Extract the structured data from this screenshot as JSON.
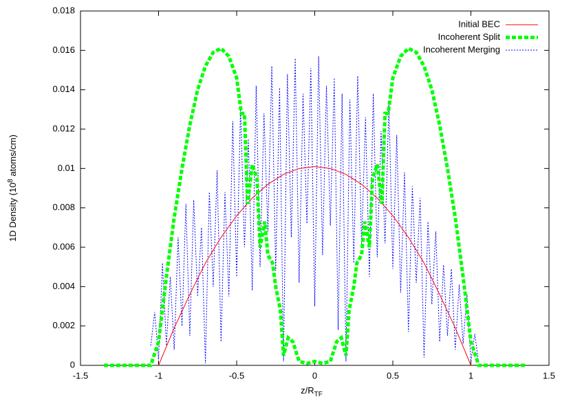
{
  "chart_data": {
    "type": "line",
    "xlabel": [
      "z/R",
      "TF"
    ],
    "ylabel": [
      "1D Density (10",
      "8",
      " atoms/cm)"
    ],
    "xlim": [
      -1.5,
      1.5
    ],
    "xticks": [
      -1.5,
      -1,
      -0.5,
      0,
      0.5,
      1,
      1.5
    ],
    "ylim": [
      0,
      0.018
    ],
    "yticks": [
      0,
      0.002,
      0.004,
      0.006,
      0.008,
      0.01,
      0.012,
      0.014,
      0.016,
      0.018
    ],
    "legend": "top-right",
    "series": [
      {
        "name": "Initial BEC",
        "color": "#ff0000",
        "line_width": 1,
        "dash": "none",
        "x": [
          -1,
          -0.9,
          -0.8,
          -0.7,
          -0.6,
          -0.5,
          -0.4,
          -0.3,
          -0.2,
          -0.1,
          0,
          0.1,
          0.2,
          0.3,
          0.4,
          0.5,
          0.6,
          0.7,
          0.8,
          0.9,
          1
        ],
        "values": [
          0,
          0.0019,
          0.0036,
          0.0052,
          0.0065,
          0.0076,
          0.0085,
          0.0092,
          0.0097,
          0.01,
          0.0101,
          0.01,
          0.0097,
          0.0092,
          0.0085,
          0.0076,
          0.0065,
          0.0052,
          0.0036,
          0.0019,
          0
        ]
      },
      {
        "name": "Incoherent Split",
        "color": "#00ff00",
        "line_width": 5,
        "dash": "6 3",
        "x": [
          -1.35,
          -1.05,
          -1,
          -0.95,
          -0.9,
          -0.85,
          -0.8,
          -0.75,
          -0.7,
          -0.65,
          -0.6,
          -0.55,
          -0.5,
          -0.47,
          -0.45,
          -0.43,
          -0.4,
          -0.37,
          -0.35,
          -0.32,
          -0.3,
          -0.27,
          -0.25,
          -0.22,
          -0.2,
          -0.17,
          -0.14,
          -0.1,
          -0.05,
          0,
          0.05,
          0.1,
          0.14,
          0.17,
          0.2,
          0.22,
          0.25,
          0.27,
          0.3,
          0.32,
          0.35,
          0.37,
          0.4,
          0.43,
          0.45,
          0.47,
          0.5,
          0.55,
          0.6,
          0.65,
          0.7,
          0.75,
          0.8,
          0.85,
          0.9,
          0.95,
          1,
          1.05,
          1.35
        ],
        "values": [
          0,
          0,
          0.0012,
          0.0045,
          0.0075,
          0.01,
          0.0122,
          0.014,
          0.0152,
          0.0159,
          0.0161,
          0.0157,
          0.0146,
          0.0128,
          0.0128,
          0.0082,
          0.0102,
          0.0095,
          0.006,
          0.0073,
          0.0056,
          0.0052,
          0.004,
          0.0028,
          0.0005,
          0.0014,
          0.0012,
          0.0002,
          0.0001,
          0.0002,
          0.0001,
          0.0002,
          0.0012,
          0.0014,
          0.0005,
          0.0028,
          0.004,
          0.0052,
          0.0056,
          0.0073,
          0.006,
          0.0095,
          0.0102,
          0.0082,
          0.0128,
          0.0128,
          0.0146,
          0.0157,
          0.0161,
          0.0159,
          0.0152,
          0.014,
          0.0122,
          0.01,
          0.0075,
          0.0045,
          0.0012,
          0,
          0
        ]
      },
      {
        "name": "Incoherent Merging",
        "color": "#0000ff",
        "line_width": 1,
        "dash": "2 2",
        "x": [
          -1.05,
          -1.025,
          -1,
          -0.975,
          -0.95,
          -0.925,
          -0.9,
          -0.875,
          -0.85,
          -0.825,
          -0.8,
          -0.775,
          -0.75,
          -0.725,
          -0.7,
          -0.675,
          -0.65,
          -0.625,
          -0.6,
          -0.575,
          -0.55,
          -0.525,
          -0.5,
          -0.475,
          -0.45,
          -0.425,
          -0.4,
          -0.375,
          -0.35,
          -0.325,
          -0.3,
          -0.275,
          -0.25,
          -0.225,
          -0.2,
          -0.175,
          -0.15,
          -0.125,
          -0.1,
          -0.075,
          -0.05,
          -0.025,
          0,
          0.025,
          0.05,
          0.075,
          0.1,
          0.125,
          0.15,
          0.175,
          0.2,
          0.225,
          0.25,
          0.275,
          0.3,
          0.325,
          0.35,
          0.375,
          0.4,
          0.425,
          0.45,
          0.475,
          0.5,
          0.525,
          0.55,
          0.575,
          0.6,
          0.625,
          0.65,
          0.675,
          0.7,
          0.725,
          0.75,
          0.775,
          0.8,
          0.825,
          0.85,
          0.875,
          0.9,
          0.925,
          0.95,
          0.975,
          1,
          1.025,
          1.05
        ],
        "values": [
          0.001,
          0.0027,
          0.0003,
          0.0052,
          0.001,
          0.0045,
          0.0008,
          0.0065,
          0.002,
          0.0082,
          0.0015,
          0.0084,
          0.0035,
          0.007,
          0.0001,
          0.0088,
          0.004,
          0.0099,
          0.0012,
          0.0088,
          0.0035,
          0.0124,
          0.0045,
          0.0131,
          0.006,
          0.0115,
          0.0038,
          0.0142,
          0.005,
          0.0128,
          0.0068,
          0.0152,
          0.0048,
          0.0141,
          0.0002,
          0.0148,
          0.0065,
          0.0156,
          0.0042,
          0.0138,
          0.0072,
          0.0151,
          0.003,
          0.0157,
          0.0056,
          0.0142,
          0.0071,
          0.0146,
          0.0018,
          0.0138,
          0.0002,
          0.0135,
          0.0052,
          0.0147,
          0.0061,
          0.0126,
          0.0045,
          0.0138,
          0.0055,
          0.0119,
          0.0062,
          0.0133,
          0.0049,
          0.0117,
          0.0037,
          0.0098,
          0.0017,
          0.0091,
          0.0042,
          0.0085,
          0.0004,
          0.0073,
          0.0031,
          0.0068,
          0.0012,
          0.0051,
          0.0015,
          0.0049,
          0.0008,
          0.0041,
          0.0011,
          0.0036,
          0.0002,
          0.0016,
          0.0001
        ]
      }
    ]
  }
}
